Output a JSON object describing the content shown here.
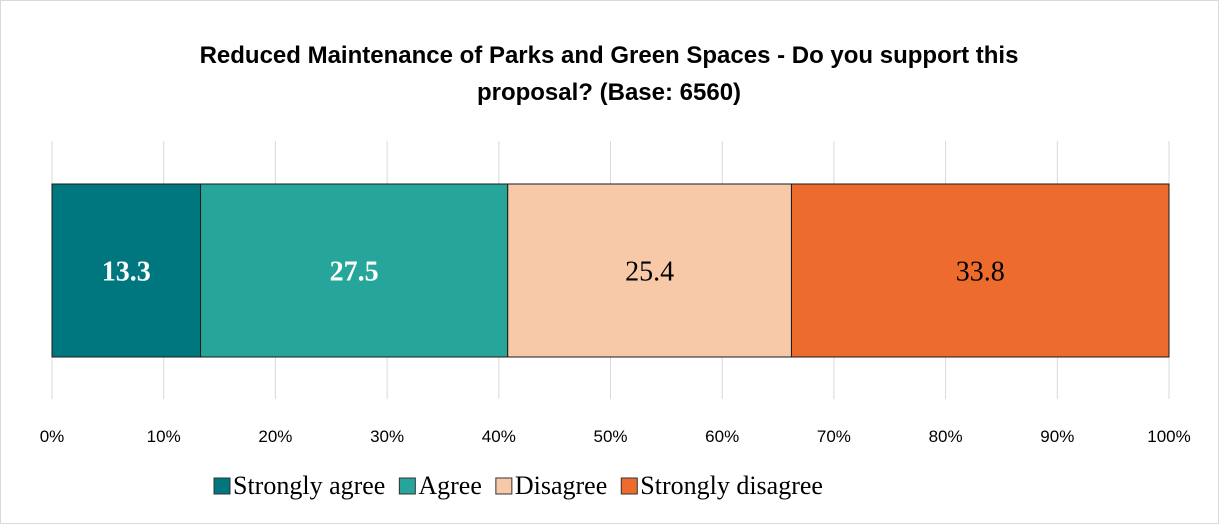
{
  "chart_data": {
    "type": "bar",
    "orientation": "horizontal",
    "stacked": true,
    "title_lines": [
      "Reduced Maintenance of Parks and Green Spaces - Do you support this",
      "proposal? (Base: 6560)"
    ],
    "xlim": [
      0,
      100
    ],
    "x_ticks": [
      "0%",
      "10%",
      "20%",
      "30%",
      "40%",
      "50%",
      "60%",
      "70%",
      "80%",
      "90%",
      "100%"
    ],
    "grid": true,
    "legend_position": "bottom",
    "series": [
      {
        "name": "Strongly agree",
        "values": [
          13.3
        ],
        "label": "13.3",
        "color": "#00777f",
        "label_color": "#ffffff",
        "label_bold": true
      },
      {
        "name": "Agree",
        "values": [
          27.5
        ],
        "label": "27.5",
        "color": "#26a69a",
        "label_color": "#ffffff",
        "label_bold": true
      },
      {
        "name": "Disagree",
        "values": [
          25.4
        ],
        "label": "25.4",
        "color": "#f8c9a8",
        "label_color": "#000000",
        "label_bold": false
      },
      {
        "name": "Strongly disagree",
        "values": [
          33.8
        ],
        "label": "33.8",
        "color": "#ec6b2d",
        "label_color": "#000000",
        "label_bold": false
      }
    ]
  }
}
